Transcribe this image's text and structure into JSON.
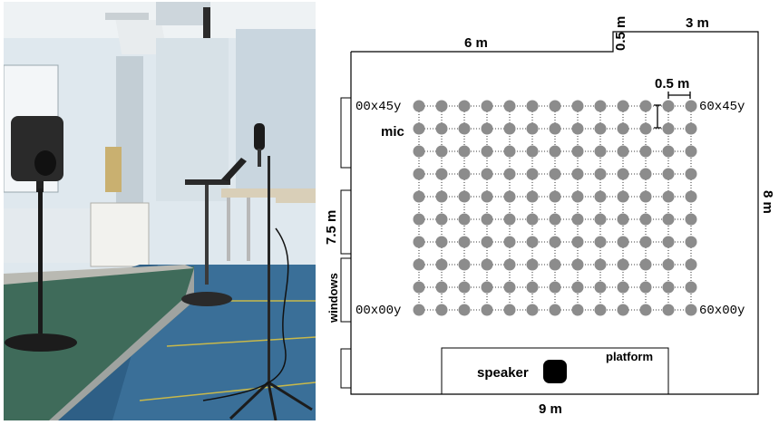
{
  "floor_plan": {
    "dimensions": {
      "top_left_width": "6 m",
      "notch_depth": "0.5 m",
      "top_right_width": "3 m",
      "right_height": "8 m",
      "left_height": "7.5 m",
      "bottom_width": "9 m",
      "grid_spacing": "0.5 m"
    },
    "corner_labels": {
      "top_left": "00x45y",
      "top_right": "60x45y",
      "bottom_left": "00x00y",
      "bottom_right": "60x00y"
    },
    "labels": {
      "mic": "mic",
      "windows": "windows",
      "platform": "platform",
      "speaker": "speaker"
    },
    "grid": {
      "columns": 13,
      "rows": 10
    },
    "colors": {
      "grid_dot": "#8c8c8c",
      "speaker": "#000000",
      "wall": "#000000"
    }
  }
}
